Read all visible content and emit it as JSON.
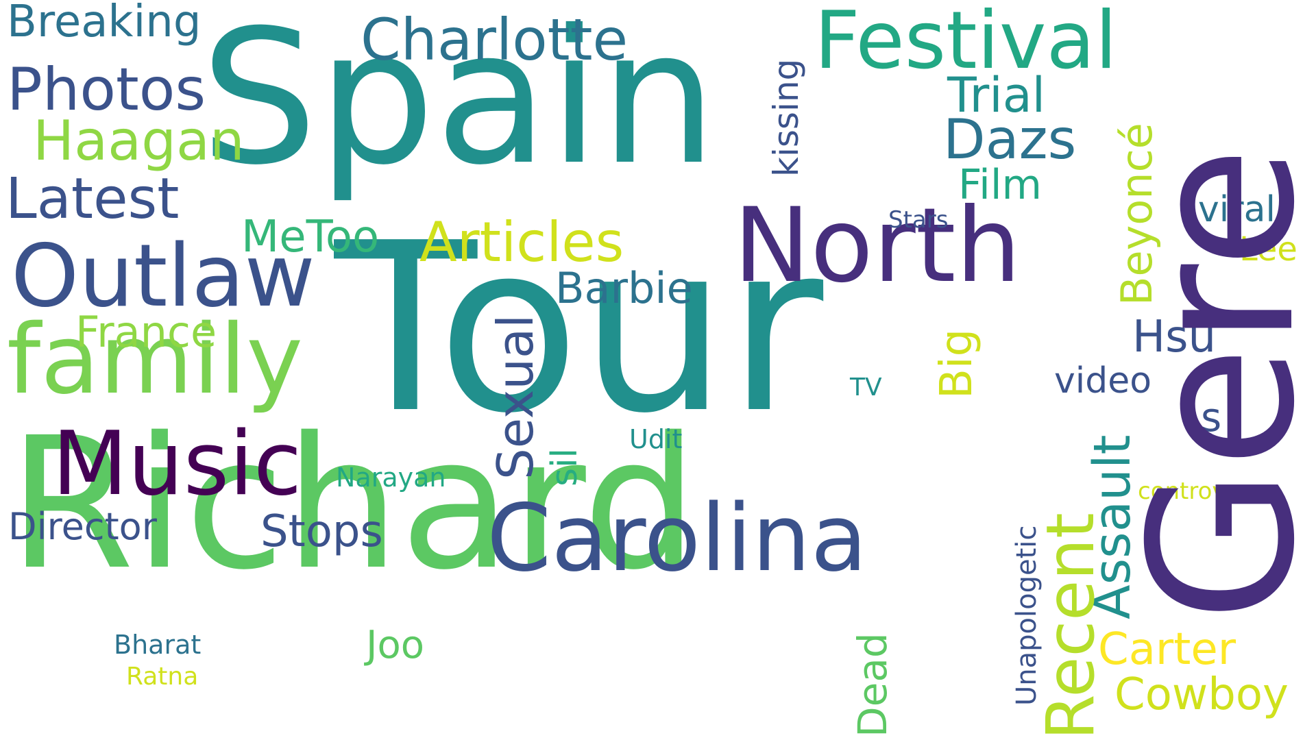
{
  "palette": {
    "background": "#ffffff",
    "dark_purple": "#440154",
    "indigo": "#472f7d",
    "slate_blue": "#3b528b",
    "steel_blue": "#2c728e",
    "teal": "#21908d",
    "green_teal": "#27ad81",
    "green": "#5cc863",
    "lime": "#aadc32",
    "yellow": "#fde725"
  },
  "words": {
    "tour": "Tour",
    "spain": "Spain",
    "richard": "Richard",
    "gere": "Gere",
    "north": "North",
    "carolina": "Carolina",
    "family": "family",
    "festival": "Festival",
    "outlaw": "Outlaw",
    "music": "Music",
    "charlotte": "Charlotte",
    "photos": "Photos",
    "latest": "Latest",
    "articles": "Articles",
    "haagan": "Haagan",
    "breaking": "Breaking",
    "dazs": "Dazs",
    "trial": "Trial",
    "film": "Film",
    "metoo": "MeToo",
    "barbie": "Barbie",
    "france": "France",
    "director": "Director",
    "stops": "Stops",
    "hsu": "Hsu",
    "video": "video",
    "viral": "viral",
    "lee": "Lee",
    "stars": "Stars",
    "s": "s",
    "carter": "Carter",
    "cowboy": "Cowboy",
    "controversy": "controversy",
    "joo": "Joo",
    "udit": "Udit",
    "narayan": "Narayan",
    "bharat": "Bharat",
    "ratna": "Ratna",
    "tv": "TV",
    "kissing": "kissing",
    "beyonce": "Beyoncé",
    "big": "Big",
    "sexual": "Sexual",
    "sil": "sil",
    "assault": "Assault",
    "recent": "Recent",
    "dead": "Dead",
    "unapologetic": "Unapologetic"
  }
}
